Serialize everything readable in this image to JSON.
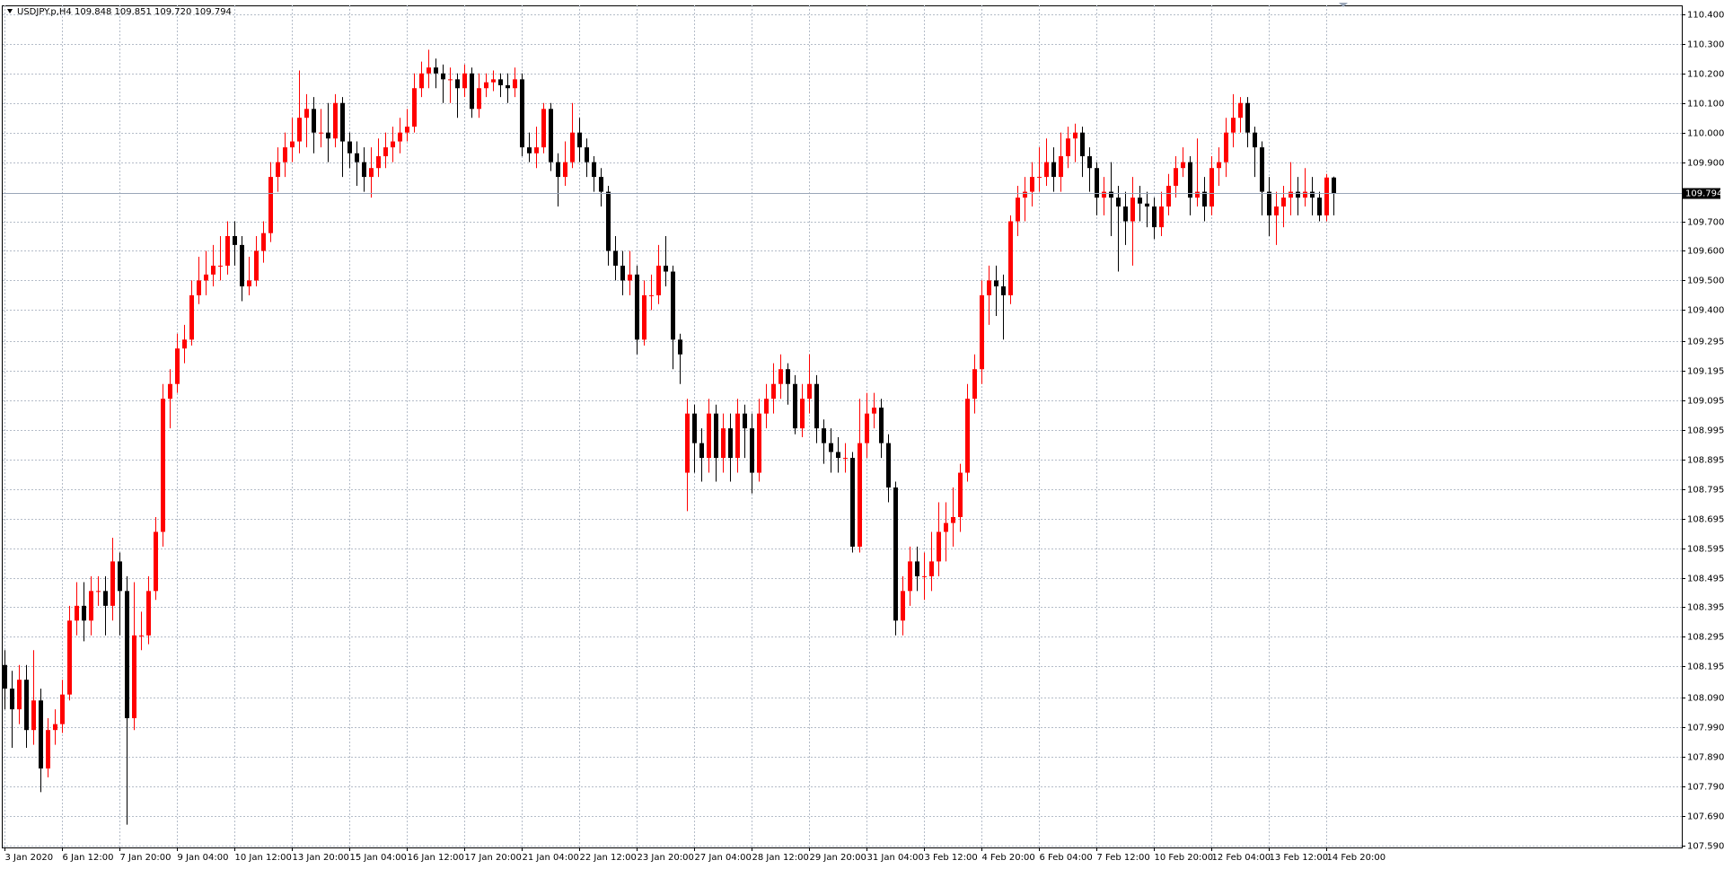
{
  "chart_data": {
    "type": "candlestick",
    "title": "USDJPY.p,H4  109.848 109.851 109.720 109.794",
    "colors": {
      "up": "#ff0000",
      "down": "#000000",
      "grid": "#b4bcc8",
      "price_line": "#9aa6b8"
    },
    "grid": true,
    "ylim": [
      107.583,
      110.43
    ],
    "yticks": [
      {
        "value": 110.4,
        "label": "110.400"
      },
      {
        "value": 110.3,
        "label": "110.300"
      },
      {
        "value": 110.2,
        "label": "110.200"
      },
      {
        "value": 110.1,
        "label": "110.100"
      },
      {
        "value": 110,
        "label": "110.000"
      },
      {
        "value": 109.9,
        "label": "109.900"
      },
      {
        "value": 109.7,
        "label": "109.700"
      },
      {
        "value": 109.6,
        "label": "109.600"
      },
      {
        "value": 109.5,
        "label": "109.500"
      },
      {
        "value": 109.4,
        "label": "109.400"
      },
      109.295,
      109.195,
      109.095,
      108.995,
      108.895,
      108.795,
      108.695,
      108.595,
      108.495,
      108.395,
      108.295,
      108.195,
      {
        "value": 108.09,
        "label": "108.090"
      },
      {
        "value": 107.99,
        "label": "107.990"
      },
      {
        "value": 107.89,
        "label": "107.890"
      },
      {
        "value": 107.79,
        "label": "107.790"
      },
      {
        "value": 107.69,
        "label": "107.690"
      },
      {
        "value": 107.59,
        "label": "107.590"
      }
    ],
    "last_price": 109.794,
    "xticks": [
      {
        "value": 0,
        "label": "3 Jan 2020"
      },
      {
        "value": 8,
        "label": "6 Jan 12:00"
      },
      {
        "value": 16,
        "label": "7 Jan 20:00"
      },
      {
        "value": 24,
        "label": "9 Jan 04:00"
      },
      {
        "value": 32,
        "label": "10 Jan 12:00"
      },
      {
        "value": 40,
        "label": "13 Jan 20:00"
      },
      {
        "value": 48,
        "label": "15 Jan 04:00"
      },
      {
        "value": 56,
        "label": "16 Jan 12:00"
      },
      {
        "value": 64,
        "label": "17 Jan 20:00"
      },
      {
        "value": 72,
        "label": "21 Jan 04:00"
      },
      {
        "value": 80,
        "label": "22 Jan 12:00"
      },
      {
        "value": 88,
        "label": "23 Jan 20:00"
      },
      {
        "value": 96,
        "label": "27 Jan 04:00"
      },
      {
        "value": 104,
        "label": "28 Jan 12:00"
      },
      {
        "value": 112,
        "label": "29 Jan 20:00"
      },
      {
        "value": 120,
        "label": "31 Jan 04:00"
      },
      {
        "value": 128,
        "label": "3 Feb 12:00"
      },
      {
        "value": 136,
        "label": "4 Feb 20:00"
      },
      {
        "value": 144,
        "label": "6 Feb 04:00"
      },
      {
        "value": 152,
        "label": "7 Feb 12:00"
      },
      {
        "value": 160,
        "label": "10 Feb 20:00"
      },
      {
        "value": 168,
        "label": "12 Feb 04:00"
      },
      {
        "value": 176,
        "label": "13 Feb 12:00"
      },
      {
        "value": 184,
        "label": "14 Feb 20:00"
      }
    ],
    "open": [
      108.2,
      108.12,
      108.05,
      108.15,
      107.98,
      108.08,
      107.85,
      107.98,
      108.0,
      108.1,
      108.35,
      108.4,
      108.35,
      108.45,
      108.45,
      108.4,
      108.55,
      108.45,
      108.02,
      108.3,
      108.3,
      108.45,
      108.65,
      109.1,
      109.15,
      109.27,
      109.3,
      109.45,
      109.5,
      109.52,
      109.55,
      109.55,
      109.65,
      109.62,
      109.48,
      109.5,
      109.6,
      109.66,
      109.85,
      109.9,
      109.95,
      109.97,
      110.05,
      110.08,
      110.0,
      110.0,
      109.98,
      110.1,
      109.97,
      109.93,
      109.9,
      109.85,
      109.88,
      109.92,
      109.95,
      109.97,
      110.0,
      110.02,
      110.15,
      110.2,
      110.22,
      110.2,
      110.18,
      110.18,
      110.15,
      110.2,
      110.08,
      110.15,
      110.17,
      110.18,
      110.16,
      110.15,
      110.18,
      109.95,
      109.93,
      109.95,
      110.08,
      109.9,
      109.85,
      109.9,
      110.0,
      109.95,
      109.9,
      109.85,
      109.8,
      109.6,
      109.55,
      109.5,
      109.52,
      109.3,
      109.45,
      109.45,
      109.55,
      109.53,
      109.3,
      108.85,
      109.05,
      108.95,
      108.9,
      109.05,
      108.9,
      109.0,
      108.9,
      109.05,
      109.0,
      108.85,
      109.05,
      109.1,
      109.15,
      109.2,
      109.15,
      109.0,
      109.1,
      109.15,
      109.0,
      108.95,
      108.92,
      108.9,
      108.9,
      108.6,
      108.95,
      109.05,
      109.07,
      108.95,
      108.8,
      108.35,
      108.45,
      108.55,
      108.5,
      108.5,
      108.55,
      108.65,
      108.68,
      108.7,
      108.85,
      109.1,
      109.2,
      109.45,
      109.5,
      109.48,
      109.45,
      109.7,
      109.78,
      109.8,
      109.85,
      109.85,
      109.9,
      109.85,
      109.92,
      109.98,
      110.0,
      109.92,
      109.88,
      109.78,
      109.8,
      109.78,
      109.75,
      109.7,
      109.78,
      109.76,
      109.75,
      109.68,
      109.75,
      109.82,
      109.88,
      109.9,
      109.78,
      109.8,
      109.75,
      109.88,
      109.9,
      110.0,
      110.05,
      110.1,
      110.0,
      109.95,
      109.8,
      109.72,
      109.75,
      109.78,
      109.8,
      109.78,
      109.8,
      109.78,
      109.72,
      109.848
    ],
    "high": [
      108.25,
      108.18,
      108.2,
      108.2,
      108.25,
      108.12,
      108.02,
      108.05,
      108.15,
      108.4,
      108.48,
      108.48,
      108.5,
      108.5,
      108.5,
      108.63,
      108.58,
      108.5,
      108.48,
      108.38,
      108.5,
      108.7,
      109.15,
      109.2,
      109.32,
      109.35,
      109.5,
      109.58,
      109.6,
      109.62,
      109.65,
      109.7,
      109.7,
      109.65,
      109.58,
      109.65,
      109.7,
      109.9,
      109.95,
      110.0,
      110.05,
      110.21,
      110.13,
      110.12,
      110.08,
      110.1,
      110.13,
      110.12,
      110.0,
      109.97,
      109.95,
      109.95,
      109.98,
      110.0,
      110.02,
      110.05,
      110.08,
      110.2,
      110.24,
      110.28,
      110.25,
      110.23,
      110.22,
      110.2,
      110.23,
      110.22,
      110.2,
      110.2,
      110.21,
      110.2,
      110.2,
      110.22,
      110.2,
      110.0,
      110.02,
      110.1,
      110.1,
      109.93,
      109.97,
      110.1,
      110.05,
      109.98,
      109.92,
      109.88,
      109.82,
      109.65,
      109.6,
      109.6,
      109.55,
      109.5,
      109.52,
      109.62,
      109.65,
      109.55,
      109.32,
      109.1,
      109.08,
      109.0,
      109.1,
      109.08,
      109.05,
      109.05,
      109.1,
      109.08,
      109.05,
      109.1,
      109.15,
      109.22,
      109.25,
      109.22,
      109.18,
      109.15,
      109.25,
      109.18,
      109.03,
      109.0,
      108.97,
      108.95,
      108.92,
      109.1,
      109.12,
      109.12,
      109.1,
      108.98,
      108.82,
      108.5,
      108.6,
      108.6,
      108.58,
      108.65,
      108.75,
      108.75,
      108.8,
      108.88,
      109.15,
      109.25,
      109.5,
      109.55,
      109.55,
      109.52,
      109.72,
      109.82,
      109.85,
      109.9,
      109.95,
      109.98,
      109.95,
      110.0,
      110.02,
      110.03,
      110.02,
      109.95,
      109.9,
      109.85,
      109.9,
      109.82,
      109.8,
      109.85,
      109.82,
      109.8,
      109.78,
      109.8,
      109.86,
      109.92,
      109.95,
      109.92,
      109.98,
      109.85,
      109.92,
      109.95,
      110.05,
      110.13,
      110.12,
      110.12,
      110.02,
      109.97,
      109.85,
      109.8,
      109.82,
      109.9,
      109.85,
      109.88,
      109.85,
      109.8,
      109.86,
      109.851
    ],
    "low": [
      108.05,
      107.92,
      108.0,
      107.92,
      107.93,
      107.77,
      107.82,
      107.93,
      107.97,
      108.08,
      108.3,
      108.28,
      108.3,
      108.4,
      108.3,
      108.35,
      108.3,
      107.66,
      107.98,
      108.25,
      108.27,
      108.42,
      108.6,
      109.0,
      109.12,
      109.22,
      109.28,
      109.42,
      109.45,
      109.48,
      109.5,
      109.52,
      109.55,
      109.43,
      109.45,
      109.48,
      109.56,
      109.63,
      109.8,
      109.85,
      109.9,
      109.93,
      109.95,
      109.93,
      109.95,
      109.9,
      109.95,
      109.85,
      109.88,
      109.82,
      109.8,
      109.78,
      109.85,
      109.88,
      109.9,
      109.93,
      109.97,
      110.0,
      110.12,
      110.15,
      110.15,
      110.1,
      110.1,
      110.05,
      110.12,
      110.05,
      110.05,
      110.12,
      110.14,
      110.12,
      110.1,
      110.12,
      109.92,
      109.9,
      109.88,
      109.93,
      109.87,
      109.75,
      109.82,
      109.88,
      109.9,
      109.85,
      109.8,
      109.75,
      109.55,
      109.5,
      109.45,
      109.45,
      109.25,
      109.28,
      109.4,
      109.42,
      109.48,
      109.2,
      109.15,
      108.72,
      108.85,
      108.82,
      108.85,
      108.82,
      108.85,
      108.82,
      108.85,
      108.9,
      108.78,
      108.82,
      109.0,
      109.05,
      109.1,
      109.08,
      108.98,
      108.97,
      109.05,
      108.95,
      108.88,
      108.85,
      108.85,
      108.85,
      108.58,
      108.58,
      108.9,
      109.0,
      108.9,
      108.75,
      108.3,
      108.3,
      108.4,
      108.45,
      108.42,
      108.45,
      108.5,
      108.55,
      108.6,
      108.65,
      108.82,
      109.05,
      109.15,
      109.35,
      109.38,
      109.3,
      109.42,
      109.65,
      109.7,
      109.75,
      109.8,
      109.82,
      109.8,
      109.8,
      109.88,
      109.9,
      109.85,
      109.8,
      109.72,
      109.72,
      109.65,
      109.53,
      109.62,
      109.55,
      109.7,
      109.68,
      109.64,
      109.65,
      109.72,
      109.78,
      109.85,
      109.72,
      109.75,
      109.7,
      109.72,
      109.82,
      109.85,
      109.95,
      110.0,
      109.95,
      109.85,
      109.72,
      109.65,
      109.62,
      109.68,
      109.72,
      109.72,
      109.75,
      109.72,
      109.7,
      109.7,
      109.72
    ],
    "close": [
      108.12,
      108.05,
      108.15,
      107.98,
      108.08,
      107.85,
      107.98,
      108.0,
      108.1,
      108.35,
      108.4,
      108.35,
      108.45,
      108.45,
      108.4,
      108.55,
      108.45,
      108.02,
      108.3,
      108.3,
      108.45,
      108.65,
      109.1,
      109.15,
      109.27,
      109.3,
      109.45,
      109.5,
      109.52,
      109.55,
      109.55,
      109.65,
      109.62,
      109.48,
      109.5,
      109.6,
      109.66,
      109.85,
      109.9,
      109.95,
      109.97,
      110.05,
      110.08,
      110.0,
      110.0,
      109.98,
      110.1,
      109.97,
      109.93,
      109.9,
      109.85,
      109.88,
      109.92,
      109.95,
      109.97,
      110.0,
      110.02,
      110.15,
      110.2,
      110.22,
      110.2,
      110.18,
      110.18,
      110.15,
      110.2,
      110.08,
      110.15,
      110.17,
      110.18,
      110.16,
      110.15,
      110.18,
      109.95,
      109.93,
      109.95,
      110.08,
      109.9,
      109.85,
      109.9,
      110.0,
      109.95,
      109.9,
      109.85,
      109.8,
      109.6,
      109.55,
      109.5,
      109.52,
      109.3,
      109.45,
      109.45,
      109.55,
      109.53,
      109.3,
      109.25,
      109.05,
      108.95,
      108.9,
      109.05,
      108.9,
      109.0,
      108.9,
      109.05,
      109.0,
      108.85,
      109.05,
      109.1,
      109.15,
      109.2,
      109.15,
      109.0,
      109.1,
      109.15,
      109.0,
      108.95,
      108.92,
      108.9,
      108.9,
      108.6,
      108.95,
      109.05,
      109.07,
      108.95,
      108.8,
      108.35,
      108.45,
      108.55,
      108.5,
      108.5,
      108.55,
      108.65,
      108.68,
      108.7,
      108.85,
      109.1,
      109.2,
      109.45,
      109.5,
      109.48,
      109.45,
      109.7,
      109.78,
      109.8,
      109.85,
      109.85,
      109.9,
      109.85,
      109.92,
      109.98,
      110.0,
      109.92,
      109.88,
      109.78,
      109.8,
      109.78,
      109.75,
      109.7,
      109.78,
      109.76,
      109.75,
      109.68,
      109.75,
      109.82,
      109.88,
      109.9,
      109.78,
      109.8,
      109.75,
      109.88,
      109.9,
      110.0,
      110.05,
      110.1,
      110.0,
      109.95,
      109.8,
      109.72,
      109.75,
      109.78,
      109.8,
      109.78,
      109.8,
      109.78,
      109.72,
      109.848,
      109.794
    ]
  }
}
